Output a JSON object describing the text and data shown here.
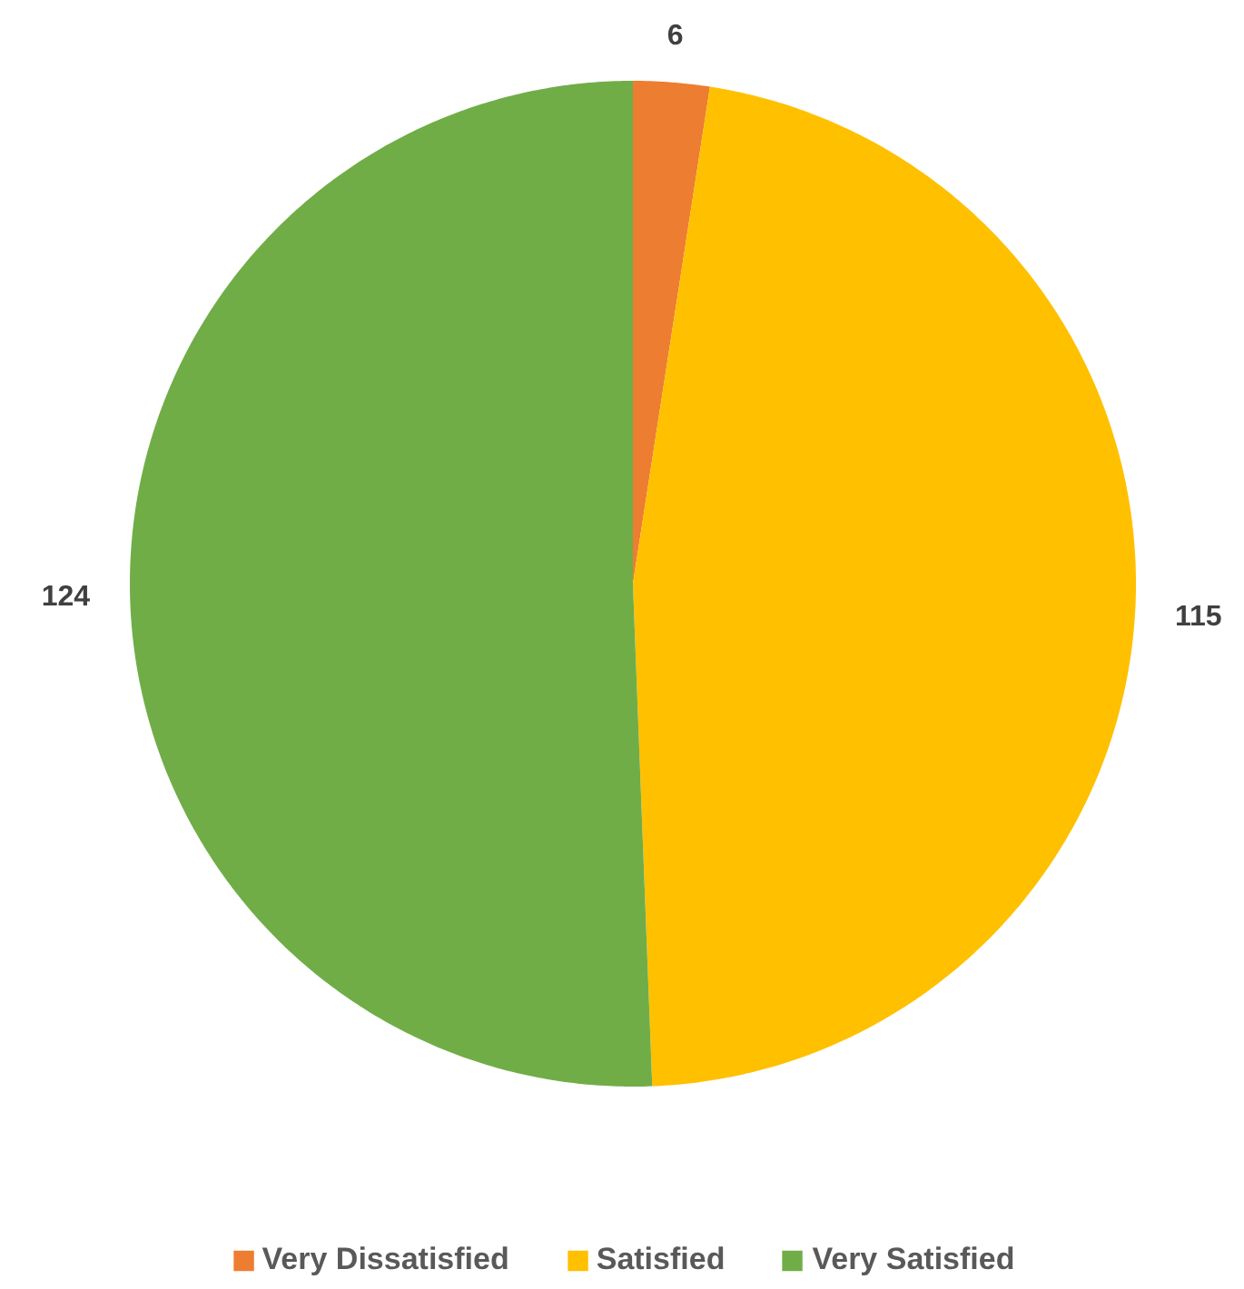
{
  "chart_data": {
    "type": "pie",
    "categories": [
      "Very Dissatisfied",
      "Satisfied",
      "Very Satisfied"
    ],
    "values": [
      6,
      115,
      124
    ],
    "colors": [
      "#ed7d31",
      "#ffc000",
      "#70ad47"
    ],
    "data_labels": true,
    "legend": "bottom"
  }
}
